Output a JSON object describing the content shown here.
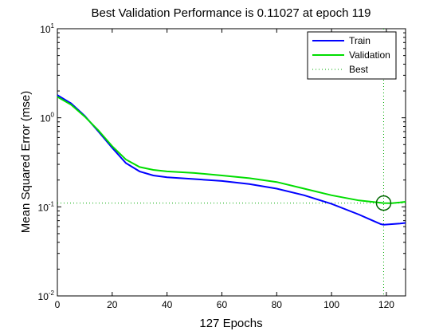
{
  "chart_data": {
    "type": "line",
    "title": "Best Validation Performance is 0.11027 at epoch 119",
    "xlabel": "127 Epochs",
    "ylabel": "Mean Squared Error  (mse)",
    "xlim": [
      0,
      127
    ],
    "ylim": [
      0.01,
      10
    ],
    "y_scale": "log",
    "x_ticks": [
      0,
      20,
      40,
      60,
      80,
      100,
      120
    ],
    "y_ticks": [
      {
        "value": 0.01,
        "base": "10",
        "exp": "-2"
      },
      {
        "value": 0.1,
        "base": "10",
        "exp": "-1"
      },
      {
        "value": 1,
        "base": "10",
        "exp": "0"
      },
      {
        "value": 10,
        "base": "10",
        "exp": "1"
      }
    ],
    "grid": false,
    "legend_position": "top-right",
    "series": [
      {
        "name": "Train",
        "color": "#0000ff",
        "x": [
          0,
          5,
          10,
          15,
          20,
          25,
          30,
          35,
          40,
          50,
          60,
          70,
          80,
          90,
          100,
          110,
          115,
          118,
          119,
          122,
          125,
          127
        ],
        "y": [
          1.8,
          1.45,
          1.05,
          0.7,
          0.46,
          0.31,
          0.25,
          0.225,
          0.215,
          0.205,
          0.195,
          0.18,
          0.16,
          0.135,
          0.108,
          0.082,
          0.07,
          0.064,
          0.063,
          0.064,
          0.065,
          0.066
        ]
      },
      {
        "name": "Validation",
        "color": "#00dd00",
        "x": [
          0,
          5,
          10,
          15,
          20,
          25,
          30,
          35,
          40,
          50,
          60,
          70,
          80,
          90,
          100,
          110,
          119,
          122,
          125,
          127
        ],
        "y": [
          1.72,
          1.4,
          1.03,
          0.72,
          0.48,
          0.34,
          0.28,
          0.26,
          0.25,
          0.24,
          0.225,
          0.21,
          0.19,
          0.16,
          0.135,
          0.118,
          0.11027,
          0.11,
          0.112,
          0.114
        ]
      }
    ],
    "best": {
      "name": "Best",
      "epoch": 119,
      "value": 0.11027,
      "color": "#00aa00"
    }
  }
}
